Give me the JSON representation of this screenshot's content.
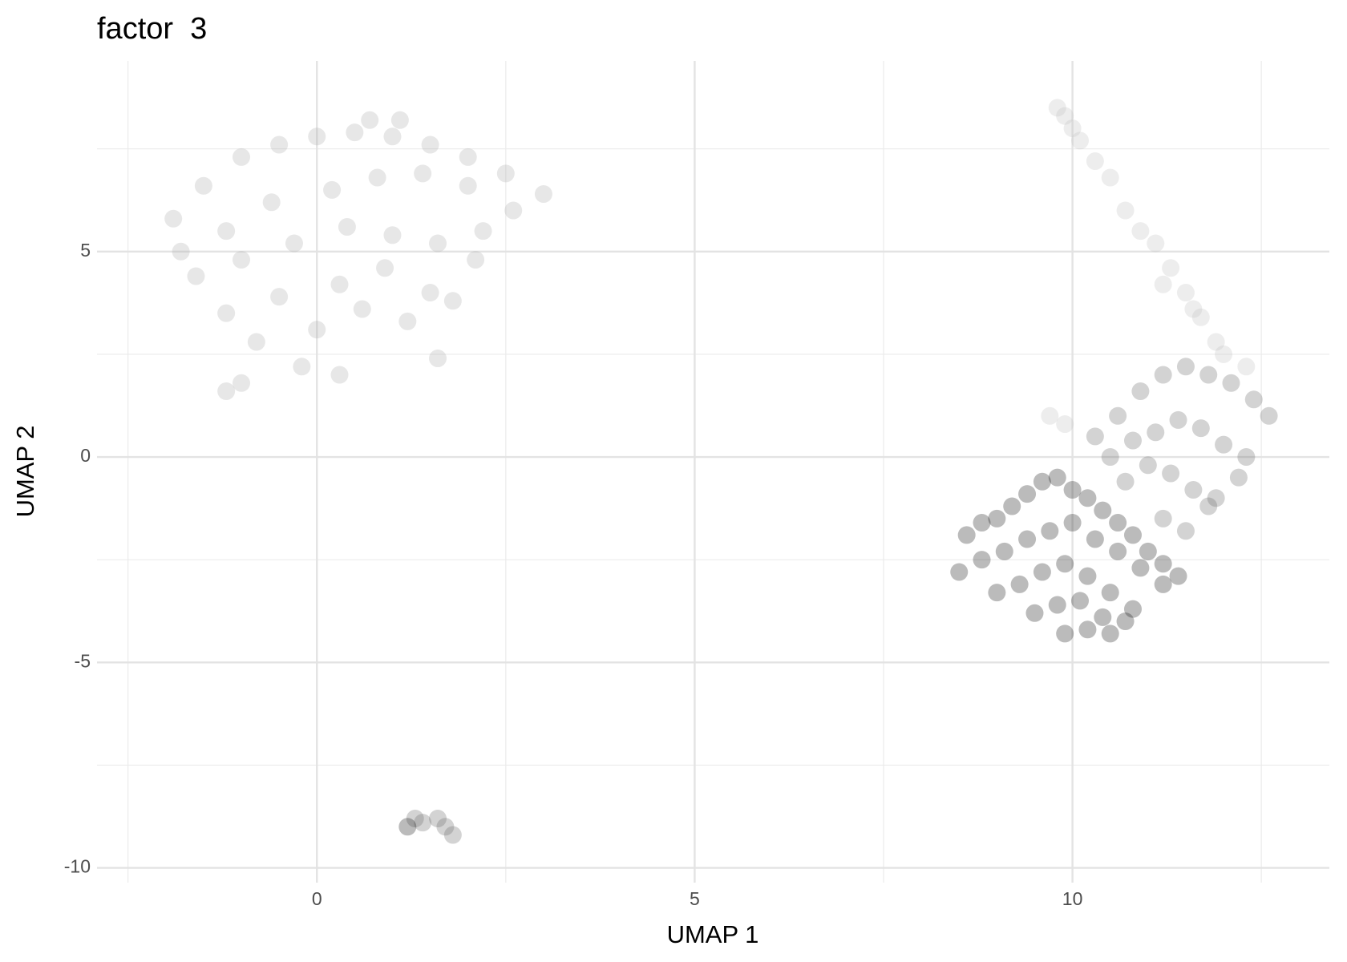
{
  "chart_data": {
    "type": "scatter",
    "title": "factor  3",
    "x_label": "UMAP 1",
    "y_label": "UMAP 2",
    "xlim": [
      -2.91,
      13.4
    ],
    "ylim": [
      -10.36,
      9.64
    ],
    "xticks": [
      0,
      5,
      10
    ],
    "yticks": [
      -10,
      -5,
      0,
      5
    ],
    "xminor": [
      -2.5,
      2.5,
      7.5,
      12.5
    ],
    "yminor": [
      -7.5,
      -2.5,
      2.5,
      7.5
    ],
    "grid": true,
    "opacity": 0.3,
    "series": [
      {
        "color": "#b0b0b0",
        "x": [
          -1.9,
          -1.5,
          -1.0,
          -0.5,
          0.0,
          0.5,
          1.0,
          1.5,
          2.0,
          2.5,
          3.0,
          -1.8,
          -1.2,
          -0.6,
          0.2,
          0.8,
          1.4,
          2.0,
          2.6,
          -1.6,
          -1.0,
          -0.3,
          0.4,
          1.0,
          1.6,
          2.2,
          -1.2,
          -0.5,
          0.3,
          0.9,
          1.5,
          2.1,
          -0.8,
          0.0,
          0.6,
          1.2,
          1.8,
          -1.2,
          -1.0,
          0.7,
          1.1,
          -0.2,
          0.3,
          1.6
        ],
        "y": [
          5.8,
          6.6,
          7.3,
          7.6,
          7.8,
          7.9,
          7.8,
          7.6,
          7.3,
          6.9,
          6.4,
          5.0,
          5.5,
          6.2,
          6.5,
          6.8,
          6.9,
          6.6,
          6.0,
          4.4,
          4.8,
          5.2,
          5.6,
          5.4,
          5.2,
          5.5,
          3.5,
          3.9,
          4.2,
          4.6,
          4.0,
          4.8,
          2.8,
          3.1,
          3.6,
          3.3,
          3.8,
          1.6,
          1.8,
          8.2,
          8.2,
          2.2,
          2.0,
          2.4
        ]
      },
      {
        "color": "#c4c4c4",
        "x": [
          9.8,
          9.9,
          10.0,
          10.1,
          10.3,
          10.5,
          10.7,
          10.9,
          11.1,
          11.3,
          11.5,
          11.7,
          11.9,
          11.2,
          11.6,
          12.0,
          12.3,
          9.7,
          9.9
        ],
        "y": [
          8.5,
          8.3,
          8.0,
          7.7,
          7.2,
          6.8,
          6.0,
          5.5,
          5.2,
          4.6,
          4.0,
          3.4,
          2.8,
          4.2,
          3.6,
          2.5,
          2.2,
          1.0,
          0.8
        ]
      },
      {
        "color": "#6e6e6e",
        "x": [
          10.3,
          10.6,
          10.9,
          11.2,
          11.5,
          11.8,
          12.1,
          12.4,
          12.6,
          10.5,
          10.8,
          11.1,
          11.4,
          11.7,
          12.0,
          12.3,
          10.7,
          11.0,
          11.3,
          11.6,
          11.9,
          12.2,
          11.2,
          11.5,
          11.8,
          1.3,
          1.4,
          1.6,
          1.7,
          1.8
        ],
        "y": [
          0.5,
          1.0,
          1.6,
          2.0,
          2.2,
          2.0,
          1.8,
          1.4,
          1.0,
          0.0,
          0.4,
          0.6,
          0.9,
          0.7,
          0.3,
          0.0,
          -0.6,
          -0.2,
          -0.4,
          -0.8,
          -1.0,
          -0.5,
          -1.5,
          -1.8,
          -1.2,
          -8.8,
          -8.9,
          -8.8,
          -9.0,
          -9.2
        ]
      },
      {
        "color": "#1e1e1e",
        "x": [
          8.6,
          8.8,
          9.0,
          9.2,
          9.4,
          9.6,
          9.8,
          10.0,
          10.2,
          10.4,
          10.6,
          10.8,
          11.0,
          11.2,
          11.4,
          8.5,
          8.8,
          9.1,
          9.4,
          9.7,
          10.0,
          10.3,
          10.6,
          10.9,
          11.2,
          9.0,
          9.3,
          9.6,
          9.9,
          10.2,
          10.5,
          10.8,
          9.5,
          9.8,
          10.1,
          10.4,
          10.7,
          9.9,
          10.2,
          10.5,
          1.2
        ],
        "y": [
          -1.9,
          -1.6,
          -1.5,
          -1.2,
          -0.9,
          -0.6,
          -0.5,
          -0.8,
          -1.0,
          -1.3,
          -1.6,
          -1.9,
          -2.3,
          -2.6,
          -2.9,
          -2.8,
          -2.5,
          -2.3,
          -2.0,
          -1.8,
          -1.6,
          -2.0,
          -2.3,
          -2.7,
          -3.1,
          -3.3,
          -3.1,
          -2.8,
          -2.6,
          -2.9,
          -3.3,
          -3.7,
          -3.8,
          -3.6,
          -3.5,
          -3.9,
          -4.0,
          -4.3,
          -4.2,
          -4.3,
          -9.0
        ]
      }
    ]
  }
}
